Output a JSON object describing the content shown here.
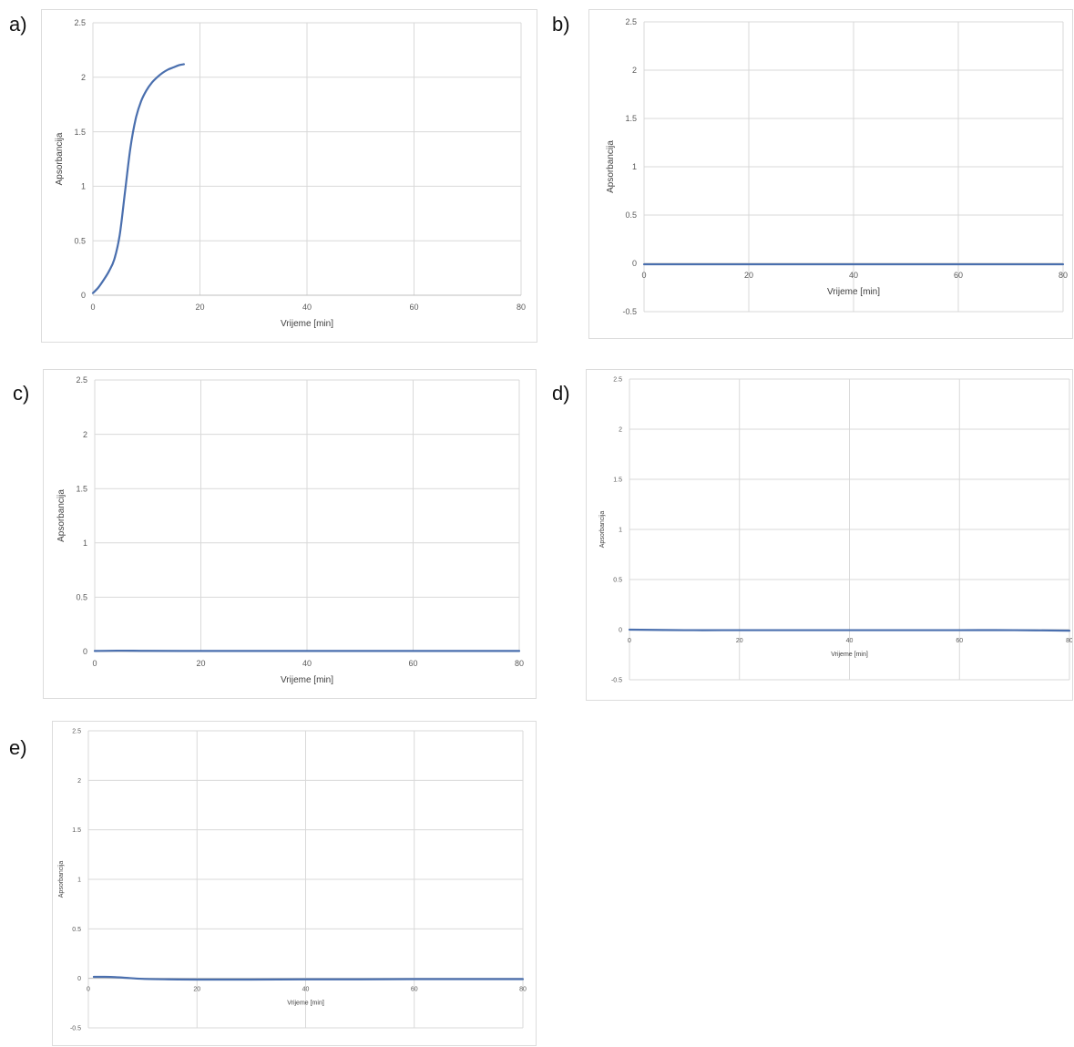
{
  "colors": {
    "series": "#4a6fae",
    "grid": "#d9d9d9",
    "frame": "#dcdcdc"
  },
  "chart_data": [
    {
      "id": "a",
      "panel_label": "a)",
      "type": "line",
      "xlabel": "Vrijeme [min]",
      "ylabel": "Apsorbancija",
      "xlim": [
        0,
        80
      ],
      "ylim": [
        0,
        2.5
      ],
      "xticks": [
        "0",
        "20",
        "40",
        "60",
        "80"
      ],
      "yticks": [
        "0",
        "0.5",
        "1",
        "1.5",
        "2",
        "2.5"
      ],
      "grid": true,
      "legend": "none",
      "series": [
        {
          "color": "#4a6fae",
          "x": [
            0,
            1,
            2,
            3,
            4,
            5,
            6,
            7,
            8,
            9,
            10,
            11,
            12,
            13,
            14,
            15,
            16,
            17
          ],
          "y": [
            0.02,
            0.07,
            0.14,
            0.22,
            0.33,
            0.55,
            0.95,
            1.35,
            1.62,
            1.78,
            1.88,
            1.95,
            2.0,
            2.04,
            2.07,
            2.09,
            2.11,
            2.12
          ]
        }
      ]
    },
    {
      "id": "b",
      "panel_label": "b)",
      "type": "line",
      "xlabel": "Vrijeme [min]",
      "ylabel": "Apsorbancija",
      "xlim": [
        0,
        80
      ],
      "ylim": [
        -0.5,
        2.5
      ],
      "xticks": [
        "0",
        "20",
        "40",
        "60",
        "80"
      ],
      "yticks": [
        "-0.5",
        "0",
        "0.5",
        "1",
        "1.5",
        "2",
        "2.5"
      ],
      "grid": true,
      "legend": "none",
      "series": [
        {
          "color": "#4a6fae",
          "x": [
            0,
            10,
            20,
            30,
            40,
            50,
            60,
            70,
            80
          ],
          "y": [
            -0.01,
            -0.01,
            -0.01,
            -0.01,
            -0.01,
            -0.01,
            -0.01,
            -0.01,
            -0.01
          ]
        }
      ]
    },
    {
      "id": "c",
      "panel_label": "c)",
      "type": "line",
      "xlabel": "Vrijeme [min]",
      "ylabel": "Apsorbancija",
      "xlim": [
        0,
        80
      ],
      "ylim": [
        0,
        2.5
      ],
      "xticks": [
        "0",
        "20",
        "40",
        "60",
        "80"
      ],
      "yticks": [
        "0",
        "0.5",
        "1",
        "1.5",
        "2",
        "2.5"
      ],
      "grid": true,
      "legend": "none",
      "series": [
        {
          "color": "#4a6fae",
          "x": [
            0,
            5,
            10,
            20,
            30,
            40,
            50,
            60,
            70,
            80
          ],
          "y": [
            0.005,
            0.008,
            0.006,
            0.005,
            0.005,
            0.005,
            0.005,
            0.005,
            0.005,
            0.005
          ]
        }
      ]
    },
    {
      "id": "d",
      "panel_label": "d)",
      "type": "line",
      "xlabel": "Vrijeme [min]",
      "ylabel": "Apsorbancija",
      "xlim": [
        0,
        80
      ],
      "ylim": [
        -0.5,
        2.5
      ],
      "xticks": [
        "0",
        "20",
        "40",
        "60",
        "80"
      ],
      "yticks": [
        "-0.5",
        "0",
        "0.5",
        "1",
        "1.5",
        "2",
        "2.5"
      ],
      "grid": true,
      "legend": "none",
      "series": [
        {
          "color": "#4a6fae",
          "x": [
            0,
            10,
            20,
            30,
            40,
            50,
            60,
            70,
            80
          ],
          "y": [
            0.0,
            -0.005,
            -0.005,
            -0.005,
            -0.005,
            -0.005,
            -0.005,
            -0.005,
            -0.01
          ]
        }
      ]
    },
    {
      "id": "e",
      "panel_label": "e)",
      "type": "line",
      "xlabel": "Vrijeme [min]",
      "ylabel": "Apsorbancija",
      "xlim": [
        0,
        80
      ],
      "ylim": [
        -0.5,
        2.5
      ],
      "xticks": [
        "0",
        "20",
        "40",
        "60",
        "80"
      ],
      "yticks": [
        "-0.5",
        "0",
        "0.5",
        "1",
        "1.5",
        "2",
        "2.5"
      ],
      "grid": true,
      "legend": "none",
      "series": [
        {
          "color": "#4a6fae",
          "x": [
            1,
            3,
            5,
            7,
            10,
            15,
            20,
            30,
            40,
            50,
            60,
            70,
            80
          ],
          "y": [
            0.015,
            0.015,
            0.012,
            0.005,
            -0.005,
            -0.01,
            -0.012,
            -0.012,
            -0.01,
            -0.01,
            -0.008,
            -0.008,
            -0.008
          ]
        }
      ]
    }
  ]
}
